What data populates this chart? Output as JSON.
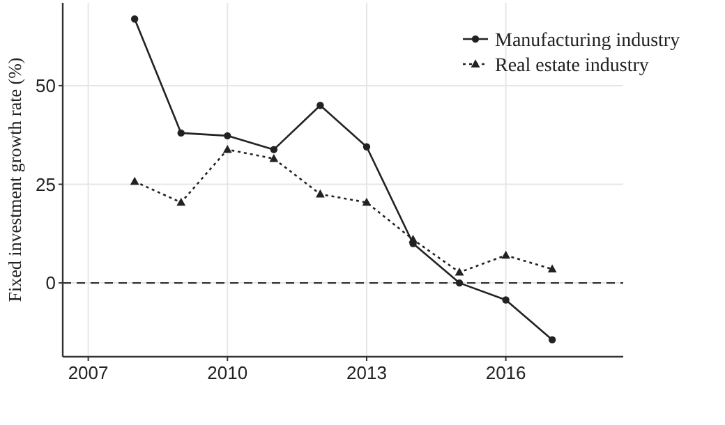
{
  "chart_data": {
    "type": "line",
    "ylabel": "Fixed investment growth rate (%)",
    "x": [
      2008,
      2009,
      2010,
      2011,
      2012,
      2013,
      2014,
      2015,
      2016,
      2017
    ],
    "series": [
      {
        "name": "Manufacturing industry",
        "color": "#222222",
        "marker": "circle",
        "line_style": "solid",
        "values": [
          66.9,
          38,
          37.3,
          33.8,
          45,
          34.5,
          10,
          0,
          -4.3,
          -14.4
        ]
      },
      {
        "name": "Real estate industry",
        "color": "#222222",
        "marker": "triangle",
        "line_style": "dotted",
        "values": [
          25.7,
          20.4,
          33.8,
          31.5,
          22.5,
          20.4,
          11,
          2.7,
          7,
          3.5
        ]
      }
    ],
    "xlim": [
      2006.45,
      2018.53
    ],
    "xticks": [
      2007,
      2010,
      2013,
      2016
    ],
    "ylim": [
      -18.7,
      71
    ],
    "yticks": [
      0,
      25,
      50
    ],
    "grid": true,
    "legend": "top right",
    "ref_lines": [
      {
        "axis": "y",
        "value": 0,
        "line_style": "dashed",
        "color": "#333333"
      }
    ]
  }
}
